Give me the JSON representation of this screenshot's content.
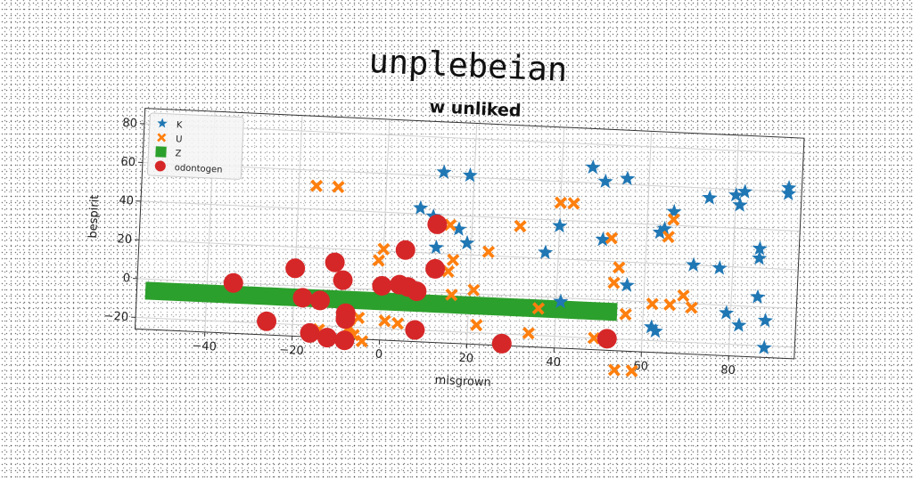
{
  "title": "unplebeian",
  "chart_data": {
    "type": "scatter",
    "subtitle": "w unliked",
    "xlabel": "misgrown",
    "ylabel": "bespirit",
    "xlim": [
      -56,
      95
    ],
    "ylim": [
      -26,
      88
    ],
    "xticks": [
      -40,
      -20,
      0,
      20,
      40,
      60,
      80
    ],
    "yticks": [
      -20,
      0,
      20,
      40,
      60,
      80
    ],
    "grid": true,
    "legend_position": "top-left",
    "series": [
      {
        "name": "K",
        "marker": "star",
        "color": "#1f77b4",
        "points": [
          [
            13,
            62
          ],
          [
            19,
            61
          ],
          [
            47,
            68
          ],
          [
            50,
            61
          ],
          [
            55,
            63
          ],
          [
            80,
            57
          ],
          [
            82,
            59
          ],
          [
            92,
            62
          ],
          [
            92,
            59
          ],
          [
            81,
            52
          ],
          [
            66,
            47
          ],
          [
            74,
            55
          ],
          [
            86,
            30
          ],
          [
            86,
            25
          ],
          [
            63,
            36
          ],
          [
            64,
            38
          ],
          [
            8,
            43
          ],
          [
            11,
            39
          ],
          [
            17,
            33
          ],
          [
            19,
            26
          ],
          [
            12,
            23
          ],
          [
            40,
            37
          ],
          [
            37,
            23
          ],
          [
            50,
            31
          ],
          [
            71,
            20
          ],
          [
            77,
            19
          ],
          [
            79,
            -4
          ],
          [
            82,
            -10
          ],
          [
            88,
            -7
          ],
          [
            88,
            -21
          ],
          [
            62,
            -13
          ],
          [
            63,
            -15
          ],
          [
            41,
            -2
          ],
          [
            56,
            8
          ],
          [
            86,
            5
          ]
        ]
      },
      {
        "name": "U",
        "marker": "x",
        "color": "#ff7f0e",
        "points": [
          [
            -16,
            52
          ],
          [
            -11,
            52
          ],
          [
            40,
            49
          ],
          [
            43,
            49
          ],
          [
            31,
            36
          ],
          [
            52,
            32
          ],
          [
            66,
            43
          ],
          [
            65,
            34
          ],
          [
            15,
            35
          ],
          [
            16,
            17
          ],
          [
            24,
            22
          ],
          [
            0,
            21
          ],
          [
            -1,
            15
          ],
          [
            15,
            11
          ],
          [
            54,
            17
          ],
          [
            53,
            9
          ],
          [
            69,
            4
          ],
          [
            16,
            -1
          ],
          [
            21,
            2
          ],
          [
            71,
            -2
          ],
          [
            62,
            -1
          ],
          [
            66,
            -1
          ],
          [
            36,
            -6
          ],
          [
            56,
            -7
          ],
          [
            -7,
            -20
          ],
          [
            -5,
            -15
          ],
          [
            4,
            -17
          ],
          [
            1,
            -16
          ],
          [
            22,
            -16
          ],
          [
            34,
            -19
          ],
          [
            49,
            -20
          ],
          [
            -14,
            -22
          ],
          [
            -6,
            -24
          ],
          [
            -4,
            -27
          ],
          [
            54,
            -36
          ],
          [
            58,
            -36
          ]
        ]
      },
      {
        "name": "Z",
        "marker": "square",
        "color": "#2ca02c",
        "points": [
          [
            -52,
            -6
          ],
          [
            -48,
            -6
          ],
          [
            -44,
            -6
          ],
          [
            -40,
            -6
          ],
          [
            -36,
            -6
          ],
          [
            -32,
            -6
          ],
          [
            -28,
            -6
          ],
          [
            -24,
            -6
          ],
          [
            -20,
            -6
          ],
          [
            -16,
            -6
          ],
          [
            -12,
            -6
          ],
          [
            -8,
            -6
          ],
          [
            -4,
            -6
          ],
          [
            0,
            -6
          ],
          [
            4,
            -6
          ],
          [
            8,
            -6
          ],
          [
            12,
            -6
          ],
          [
            16,
            -6
          ],
          [
            20,
            -6
          ],
          [
            24,
            -6
          ],
          [
            28,
            -6
          ],
          [
            32,
            -6
          ],
          [
            36,
            -6
          ],
          [
            40,
            -6
          ],
          [
            44,
            -6
          ],
          [
            48,
            -6
          ],
          [
            52,
            -6
          ]
        ]
      },
      {
        "name": "odontogen",
        "marker": "circle",
        "color": "#d62728",
        "points": [
          [
            12,
            35
          ],
          [
            5,
            21
          ],
          [
            12,
            12
          ],
          [
            -20,
            9
          ],
          [
            -11,
            13
          ],
          [
            -9,
            4
          ],
          [
            0,
            2
          ],
          [
            4,
            3
          ],
          [
            6,
            2
          ],
          [
            8,
            0
          ],
          [
            -34,
            0
          ],
          [
            -18,
            -6
          ],
          [
            -14,
            -7
          ],
          [
            -8,
            -13
          ],
          [
            -8,
            -16
          ],
          [
            -26,
            -19
          ],
          [
            -16,
            -24
          ],
          [
            -12,
            -26
          ],
          [
            -8,
            -27
          ],
          [
            8,
            -20
          ],
          [
            28,
            -25
          ],
          [
            52,
            -20
          ]
        ]
      }
    ]
  }
}
